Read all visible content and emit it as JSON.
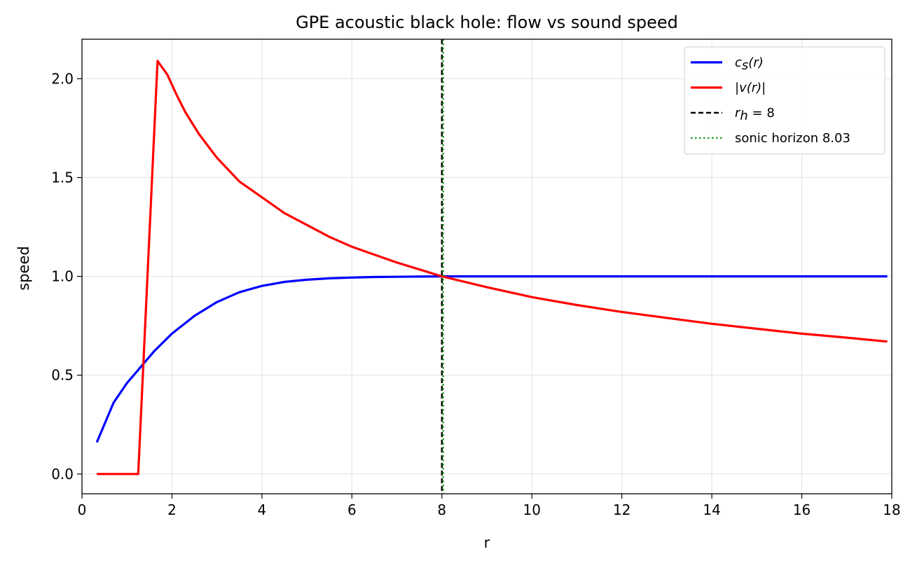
{
  "chart_data": {
    "type": "line",
    "title": "GPE acoustic black hole: flow vs sound speed",
    "xlabel": "r",
    "ylabel": "speed",
    "xlim": [
      0,
      18
    ],
    "ylim": [
      -0.1,
      2.2
    ],
    "xticks": [
      "0",
      "2",
      "4",
      "6",
      "8",
      "10",
      "12",
      "14",
      "16",
      "18"
    ],
    "xtick_values": [
      0,
      2,
      4,
      6,
      8,
      10,
      12,
      14,
      16,
      18
    ],
    "yticks": [
      "0.0",
      "0.5",
      "1.0",
      "1.5",
      "2.0"
    ],
    "ytick_values": [
      0.0,
      0.5,
      1.0,
      1.5,
      2.0
    ],
    "grid": true,
    "legend_position": "top-right",
    "series": [
      {
        "key": "cs",
        "label_main": "c",
        "label_sub": "s",
        "label_tail": "(r)",
        "color": "#0000ff",
        "style": "solid",
        "x": [
          0.33,
          0.7,
          1.0,
          1.3,
          1.6,
          2.0,
          2.5,
          3.0,
          3.5,
          4.0,
          4.5,
          5.0,
          5.5,
          6.0,
          6.5,
          7.0,
          7.5,
          8.0,
          9.0,
          10.0,
          12.0,
          14.0,
          16.0,
          17.9
        ],
        "y": [
          0.16,
          0.36,
          0.46,
          0.54,
          0.62,
          0.71,
          0.8,
          0.87,
          0.92,
          0.952,
          0.972,
          0.983,
          0.99,
          0.994,
          0.997,
          0.998,
          0.999,
          1.0,
          1.0,
          1.0,
          1.0,
          1.0,
          1.0,
          1.0
        ]
      },
      {
        "key": "v",
        "label_main": "|v(r)|",
        "color": "#ff0000",
        "style": "solid",
        "x": [
          0.33,
          0.8,
          1.25,
          1.68,
          1.9,
          2.1,
          2.3,
          2.6,
          3.0,
          3.5,
          4.0,
          4.5,
          5.0,
          5.5,
          6.0,
          6.5,
          7.0,
          7.5,
          8.0,
          9.0,
          10.0,
          11.0,
          12.0,
          13.0,
          14.0,
          15.0,
          16.0,
          17.0,
          17.9
        ],
        "y": [
          0.0,
          0.0,
          0.0,
          2.09,
          2.02,
          1.92,
          1.83,
          1.72,
          1.6,
          1.48,
          1.4,
          1.32,
          1.26,
          1.2,
          1.15,
          1.11,
          1.07,
          1.035,
          1.0,
          0.945,
          0.895,
          0.855,
          0.82,
          0.79,
          0.76,
          0.735,
          0.71,
          0.69,
          0.67
        ]
      }
    ],
    "vlines": [
      {
        "key": "rh",
        "x": 8.0,
        "color": "#000000",
        "style": "dashed",
        "label_main": "r",
        "label_sub": "h",
        "label_tail": " = 8"
      },
      {
        "key": "sonic",
        "x": 8.03,
        "color": "#2ca02c",
        "style": "dotted",
        "label_main": "sonic horizon 8.03"
      }
    ]
  }
}
